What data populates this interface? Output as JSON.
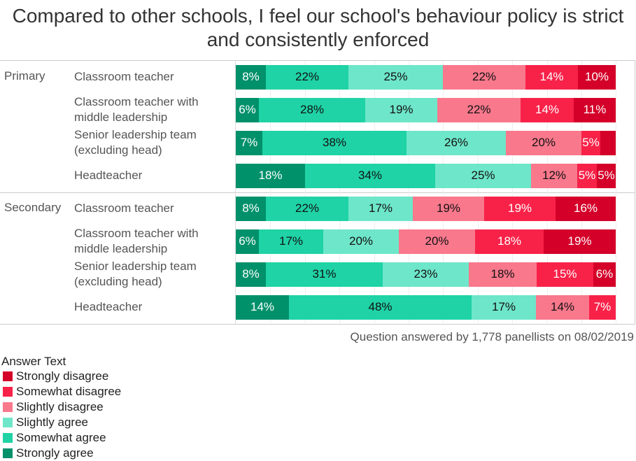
{
  "chart_data": {
    "type": "bar",
    "orientation": "horizontal-stacked-100",
    "title": "Compared to other schools, I feel our school's behaviour policy is strict and consistently enforced",
    "caption": "Question answered by 1,778 panellists on 08/02/2019",
    "legend_title": "Answer Text",
    "legend": [
      {
        "name": "Strongly disagree",
        "color": "#d40029"
      },
      {
        "name": "Somewhat disagree",
        "color": "#f82249"
      },
      {
        "name": "Slightly disagree",
        "color": "#f9788c"
      },
      {
        "name": "Slightly agree",
        "color": "#6ee6c9"
      },
      {
        "name": "Somewhat agree",
        "color": "#1fd3a6"
      },
      {
        "name": "Strongly agree",
        "color": "#00916b"
      }
    ],
    "segment_order": [
      "Strongly agree",
      "Somewhat agree",
      "Slightly agree",
      "Slightly disagree",
      "Somewhat disagree",
      "Strongly disagree"
    ],
    "groups": [
      {
        "name": "Primary",
        "rows": [
          {
            "label": "Classroom teacher",
            "values": [
              8,
              22,
              25,
              22,
              14,
              10
            ],
            "labels": [
              "8%",
              "22%",
              "25%",
              "22%",
              "14%",
              "10%"
            ]
          },
          {
            "label": "Classroom teacher with middle leadership",
            "values": [
              6,
              28,
              19,
              22,
              14,
              11
            ],
            "labels": [
              "6%",
              "28%",
              "19%",
              "22%",
              "14%",
              "11%"
            ]
          },
          {
            "label": "Senior leadership team (excluding head)",
            "values": [
              7,
              38,
              26,
              20,
              5,
              4
            ],
            "labels": [
              "7%",
              "38%",
              "26%",
              "20%",
              "5%",
              ""
            ]
          },
          {
            "label": "Headteacher",
            "values": [
              18,
              34,
              25,
              12,
              5,
              5
            ],
            "labels": [
              "18%",
              "34%",
              "25%",
              "12%",
              "5%",
              "5%"
            ]
          }
        ]
      },
      {
        "name": "Secondary",
        "rows": [
          {
            "label": "Classroom teacher",
            "values": [
              8,
              22,
              17,
              19,
              19,
              16
            ],
            "labels": [
              "8%",
              "22%",
              "17%",
              "19%",
              "19%",
              "16%"
            ]
          },
          {
            "label": "Classroom teacher with middle leadership",
            "values": [
              6,
              17,
              20,
              20,
              18,
              19
            ],
            "labels": [
              "6%",
              "17%",
              "20%",
              "20%",
              "18%",
              "19%"
            ]
          },
          {
            "label": "Senior leadership team (excluding head)",
            "values": [
              8,
              31,
              23,
              18,
              15,
              6
            ],
            "labels": [
              "8%",
              "31%",
              "23%",
              "18%",
              "15%",
              "6%"
            ]
          },
          {
            "label": "Headteacher",
            "values": [
              14,
              48,
              17,
              14,
              7,
              0
            ],
            "labels": [
              "14%",
              "48%",
              "17%",
              "14%",
              "7%",
              ""
            ]
          }
        ]
      }
    ]
  }
}
